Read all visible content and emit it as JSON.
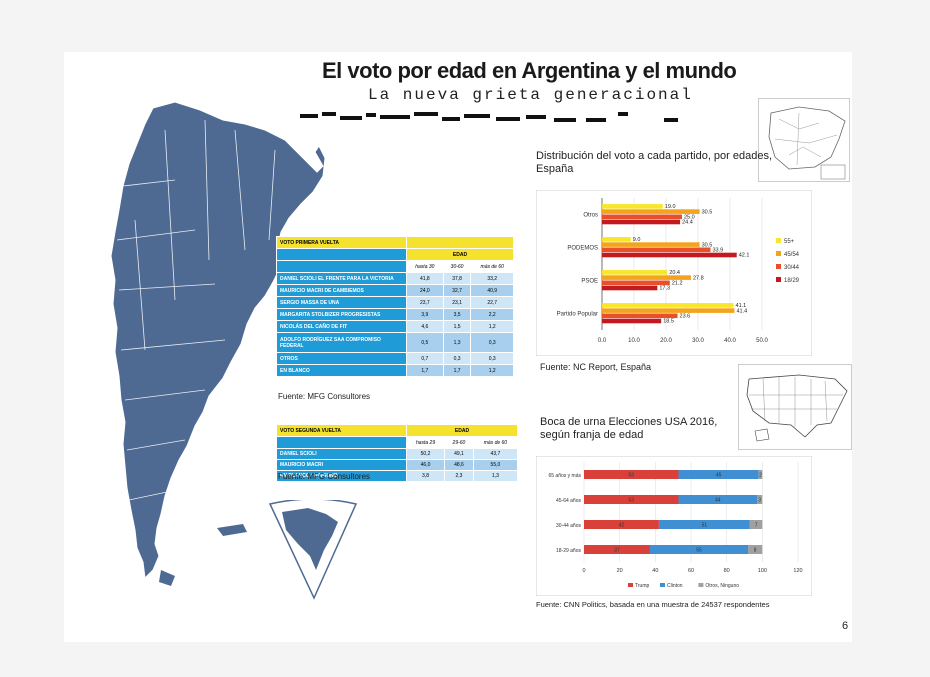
{
  "slide": {
    "title": "El voto por edad en Argentina y el mundo",
    "subtitle": "La nueva grieta generacional",
    "page_number": "6"
  },
  "table1": {
    "caption": "VOTO PRIMERA VUELTA",
    "group_header": "EDAD",
    "columns": [
      "hasta 30",
      "30-60",
      "más de 60"
    ],
    "rows": [
      {
        "label": "DANIEL SCIOLI EL FRENTE PARA LA VICTORIA",
        "values": [
          "41,8",
          "37,8",
          "33,2"
        ]
      },
      {
        "label": "MAURICIO MACRI DE CAMBIEMOS",
        "values": [
          "24,0",
          "32,7",
          "40,9"
        ]
      },
      {
        "label": "SERGIO MASSA DE UNA",
        "values": [
          "23,7",
          "23,1",
          "22,7"
        ]
      },
      {
        "label": "MARGARITA STOLBIZER PROGRESISTAS",
        "values": [
          "3,9",
          "3,5",
          "2,2"
        ]
      },
      {
        "label": "NICOLÁS DEL CAÑO DE FIT",
        "values": [
          "4,6",
          "1,5",
          "1,2"
        ]
      },
      {
        "label": "ADOLFO RODRÍGUEZ SAA COMPROMISO FEDERAL",
        "values": [
          "0,5",
          "1,3",
          "0,3"
        ]
      },
      {
        "label": "OTROS",
        "values": [
          "0,7",
          "0,3",
          "0,3"
        ]
      },
      {
        "label": "EN BLANCO",
        "values": [
          "1,7",
          "1,7",
          "1,2"
        ]
      }
    ],
    "source": "Fuente: MFG Consultores"
  },
  "table2": {
    "caption": "VOTO SEGUNDA VUELTA",
    "group_header": "EDAD",
    "columns": [
      "hasta 29",
      "29-60",
      "más de 60"
    ],
    "rows": [
      {
        "label": "DANIEL SCIOLI",
        "values": [
          "50,2",
          "49,1",
          "43,7"
        ]
      },
      {
        "label": "MAURICIO MACRI",
        "values": [
          "46,0",
          "48,6",
          "55,0"
        ]
      },
      {
        "label": "EN BLANCO / NINGUNO",
        "values": [
          "3,8",
          "2,3",
          "1,3"
        ]
      }
    ],
    "source": "Fuente: MFG Consultores"
  },
  "chart_data": [
    {
      "type": "bar",
      "orientation": "horizontal",
      "title": "Distribución del voto a cada partido, por edades, España",
      "categories": [
        "Otros",
        "PODEMOS",
        "PSOE",
        "Partido Popular"
      ],
      "series": [
        {
          "name": "55+",
          "color": "#f7e62a",
          "values": [
            19.0,
            9.0,
            20.4,
            41.1
          ]
        },
        {
          "name": "45/54",
          "color": "#f4a41c",
          "values": [
            30.5,
            30.5,
            27.8,
            41.4
          ]
        },
        {
          "name": "30/44",
          "color": "#e8502a",
          "values": [
            25.0,
            33.9,
            21.2,
            23.6
          ]
        },
        {
          "name": "18/29",
          "color": "#c6191f",
          "values": [
            24.4,
            42.1,
            17.3,
            18.5
          ]
        }
      ],
      "xticks": [
        "0.0",
        "10.0",
        "20.0",
        "30.0",
        "40.0",
        "50.0"
      ],
      "xlim": [
        0,
        50
      ],
      "legend": "right",
      "source": "Fuente: NC Report, España"
    },
    {
      "type": "bar",
      "orientation": "horizontal",
      "stacked": true,
      "title": "Boca de urna Elecciones USA 2016, según franja de edad",
      "categories": [
        "65 años y más",
        "45-64 años",
        "30-44 años",
        "18-29 años"
      ],
      "series": [
        {
          "name": "Trump",
          "color": "#d9403a",
          "values": [
            53,
            53,
            42,
            37
          ]
        },
        {
          "name": "Clinton",
          "color": "#3f8fd2",
          "values": [
            45,
            44,
            51,
            55
          ]
        },
        {
          "name": "Otros, Ninguno",
          "color": "#a0a0a0",
          "values": [
            2,
            3,
            7,
            8
          ]
        }
      ],
      "xticks": [
        "0",
        "20",
        "40",
        "60",
        "80",
        "100",
        "120"
      ],
      "xlim": [
        0,
        120
      ],
      "legend": "bottom",
      "source": "Fuente: CNN Politics, basada en una muestra de 24537 respondentes"
    }
  ]
}
